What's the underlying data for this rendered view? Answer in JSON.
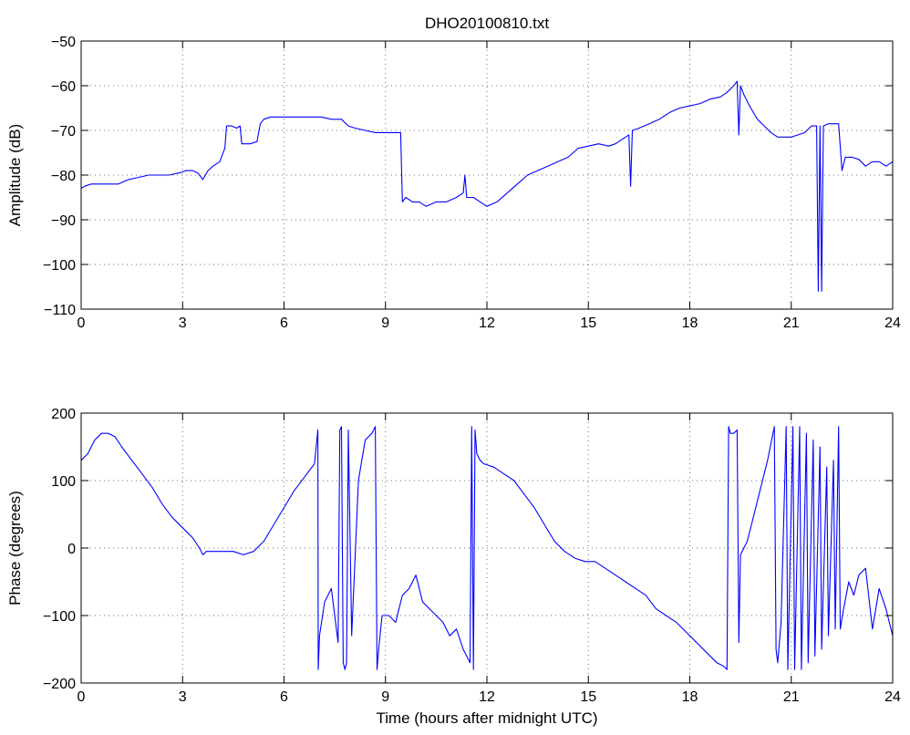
{
  "colors": {
    "series": "#0000ff",
    "axes": "#000000",
    "background": "#ffffff"
  },
  "chart_data": [
    {
      "type": "line",
      "title": "DHO20100810.txt",
      "xlabel": "",
      "ylabel": "Amplitude (dB)",
      "xlim": [
        0,
        24
      ],
      "ylim": [
        -110,
        -50
      ],
      "xticks": [
        0,
        3,
        6,
        9,
        12,
        15,
        18,
        21,
        24
      ],
      "yticks": [
        -110,
        -100,
        -90,
        -80,
        -70,
        -60,
        -50
      ],
      "grid": true,
      "series": [
        {
          "x": [
            0,
            0.1,
            0.3,
            0.6,
            0.9,
            1.1,
            1.4,
            1.7,
            2.0,
            2.3,
            2.6,
            2.9,
            3.1,
            3.3,
            3.45,
            3.6,
            3.75,
            3.9,
            4.1,
            4.25,
            4.3,
            4.45,
            4.6,
            4.7,
            4.75,
            4.85,
            5.0,
            5.2,
            5.3,
            5.35,
            5.4,
            5.6,
            5.9,
            6.2,
            6.5,
            6.8,
            7.1,
            7.4,
            7.7,
            7.9,
            8.1,
            8.4,
            8.7,
            9.0,
            9.3,
            9.45,
            9.5,
            9.6,
            9.8,
            10.0,
            10.2,
            10.5,
            10.8,
            11.1,
            11.3,
            11.35,
            11.4,
            11.6,
            11.8,
            12.0,
            12.3,
            12.6,
            12.9,
            13.2,
            13.5,
            13.8,
            14.1,
            14.4,
            14.7,
            15.0,
            15.3,
            15.6,
            15.8,
            16.0,
            16.2,
            16.25,
            16.3,
            16.5,
            16.8,
            17.1,
            17.4,
            17.7,
            18.0,
            18.3,
            18.6,
            18.9,
            19.1,
            19.3,
            19.4,
            19.45,
            19.5,
            19.6,
            19.8,
            20.0,
            20.2,
            20.4,
            20.6,
            20.8,
            21.0,
            21.2,
            21.4,
            21.6,
            21.75,
            21.8,
            21.85,
            21.9,
            21.95,
            22.1,
            22.3,
            22.4,
            22.5,
            22.6,
            22.8,
            23.0,
            23.2,
            23.4,
            23.6,
            23.8,
            24.0
          ],
          "y": [
            -83,
            -82.5,
            -82,
            -82,
            -82,
            -82,
            -81,
            -80.5,
            -80,
            -80,
            -80,
            -79.5,
            -79,
            -79,
            -79.5,
            -81,
            -79,
            -78,
            -77,
            -74,
            -69,
            -69,
            -69.5,
            -69,
            -73,
            -73,
            -73,
            -72.5,
            -68.5,
            -68,
            -67.5,
            -67,
            -67,
            -67,
            -67,
            -67,
            -67,
            -67.5,
            -67.5,
            -69,
            -69.5,
            -70,
            -70.5,
            -70.5,
            -70.5,
            -70.5,
            -86,
            -85,
            -86,
            -86,
            -87,
            -86,
            -86,
            -85,
            -84,
            -80,
            -85,
            -85,
            -86,
            -87,
            -86,
            -84,
            -82,
            -80,
            -79,
            -78,
            -77,
            -76,
            -74,
            -73.5,
            -73,
            -73.5,
            -73,
            -72,
            -71,
            -82.5,
            -70,
            -69.5,
            -68.5,
            -67.5,
            -66,
            -65,
            -64.5,
            -64,
            -63,
            -62.5,
            -61.5,
            -60,
            -59,
            -71,
            -60,
            -62,
            -65,
            -67.5,
            -69,
            -70.5,
            -71.5,
            -71.5,
            -71.5,
            -71,
            -70.5,
            -69,
            -69,
            -106,
            -69,
            -106,
            -69,
            -68.5,
            -68.5,
            -68.5,
            -79,
            -76,
            -76,
            -76.5,
            -78,
            -77,
            -77,
            -78,
            -77
          ]
        }
      ]
    },
    {
      "type": "line",
      "title": "",
      "xlabel": "Time (hours after midnight UTC)",
      "ylabel": "Phase (degrees)",
      "xlim": [
        0,
        24
      ],
      "ylim": [
        -200,
        200
      ],
      "xticks": [
        0,
        3,
        6,
        9,
        12,
        15,
        18,
        21,
        24
      ],
      "yticks": [
        -200,
        -100,
        0,
        100,
        200
      ],
      "grid": true,
      "series": [
        {
          "x": [
            0,
            0.2,
            0.4,
            0.6,
            0.8,
            1.0,
            1.2,
            1.5,
            1.8,
            2.1,
            2.4,
            2.7,
            3.0,
            3.3,
            3.5,
            3.6,
            3.7,
            4.0,
            4.3,
            4.5,
            4.8,
            5.1,
            5.4,
            5.7,
            6.0,
            6.3,
            6.6,
            6.9,
            7.0,
            7.01,
            7.05,
            7.2,
            7.4,
            7.5,
            7.6,
            7.65,
            7.7,
            7.75,
            7.8,
            7.85,
            7.9,
            8.0,
            8.2,
            8.4,
            8.6,
            8.7,
            8.75,
            8.8,
            8.9,
            9.1,
            9.3,
            9.5,
            9.7,
            9.9,
            10.1,
            10.3,
            10.5,
            10.7,
            10.9,
            11.1,
            11.3,
            11.5,
            11.55,
            11.6,
            11.65,
            11.7,
            11.75,
            11.8,
            11.9,
            12.2,
            12.5,
            12.8,
            13.1,
            13.4,
            13.7,
            14.0,
            14.3,
            14.6,
            14.9,
            15.2,
            15.5,
            15.8,
            16.1,
            16.4,
            16.7,
            17.0,
            17.3,
            17.6,
            17.9,
            18.2,
            18.5,
            18.8,
            19.0,
            19.1,
            19.15,
            19.2,
            19.3,
            19.4,
            19.45,
            19.5,
            19.7,
            19.9,
            20.1,
            20.3,
            20.5,
            20.55,
            20.6,
            20.7,
            20.85,
            20.9,
            21.05,
            21.1,
            21.25,
            21.3,
            21.45,
            21.5,
            21.65,
            21.7,
            21.85,
            21.9,
            22.05,
            22.1,
            22.25,
            22.3,
            22.4,
            22.45,
            22.55,
            22.7,
            22.85,
            23.0,
            23.2,
            23.4,
            23.6,
            23.8,
            24.0
          ],
          "y": [
            130,
            140,
            160,
            170,
            170,
            165,
            150,
            130,
            110,
            90,
            65,
            45,
            30,
            15,
            0,
            -10,
            -5,
            -5,
            -5,
            -5,
            -10,
            -5,
            10,
            35,
            60,
            85,
            105,
            125,
            175,
            -180,
            -130,
            -80,
            -60,
            -100,
            -140,
            175,
            180,
            -170,
            -180,
            -170,
            175,
            -130,
            100,
            160,
            170,
            180,
            -180,
            -150,
            -100,
            -100,
            -110,
            -70,
            -60,
            -40,
            -80,
            -90,
            -100,
            -110,
            -130,
            -120,
            -150,
            -170,
            180,
            -180,
            175,
            140,
            135,
            130,
            125,
            120,
            110,
            100,
            80,
            60,
            35,
            10,
            -5,
            -15,
            -20,
            -20,
            -30,
            -40,
            -50,
            -60,
            -70,
            -90,
            -100,
            -110,
            -125,
            -140,
            -155,
            -170,
            -175,
            -180,
            180,
            170,
            170,
            175,
            -140,
            -10,
            10,
            50,
            90,
            130,
            180,
            -150,
            -170,
            -110,
            180,
            -180,
            180,
            -180,
            180,
            -180,
            170,
            -170,
            160,
            -160,
            150,
            -150,
            120,
            -130,
            130,
            -120,
            180,
            -120,
            -90,
            -50,
            -70,
            -40,
            -30,
            -120,
            -60,
            -90,
            -130
          ]
        }
      ]
    }
  ]
}
